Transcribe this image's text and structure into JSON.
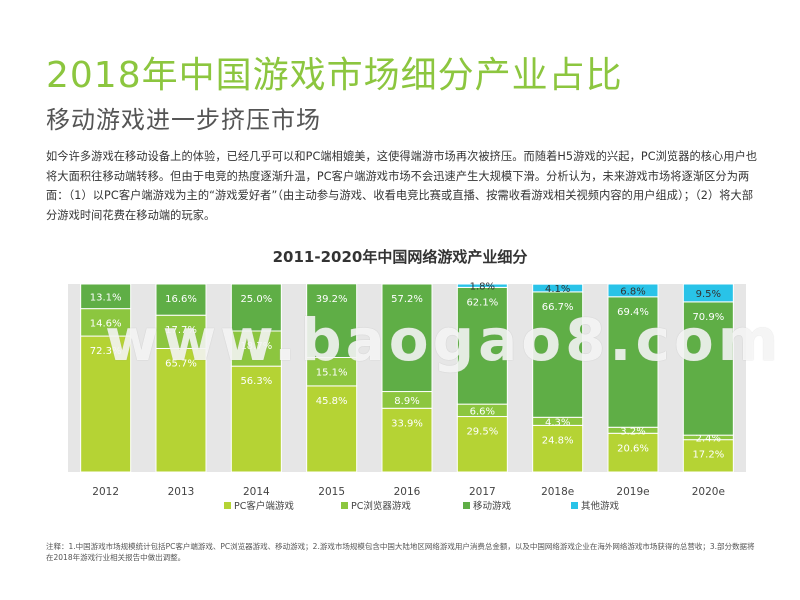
{
  "header": {
    "title": "2018年中国游戏市场细分产业占比",
    "subtitle": "移动游戏进一步挤压市场"
  },
  "intro": "如今许多游戏在移动设备上的体验，已经几乎可以和PC端相媲美，这使得端游市场再次被挤压。而随着H5游戏的兴起，PC浏览器的核心用户也将大面积往移动端转移。但由于电竞的热度逐渐升温，PC客户端游戏市场不会迅速产生大规模下滑。分析认为，未来游戏市场将逐渐区分为两面：（1）以PC客户端游戏为主的“游戏爱好者”（由主动参与游戏、收看电竞比赛或直播、按需收看游戏相关视频内容的用户组成）；（2）将大部分游戏时间花费在移动端的玩家。",
  "watermark": "www.baogao8.com",
  "footnote": "注释：1.中国游戏市场规模统计包括PC客户端游戏、PC浏览器游戏、移动游戏；2.游戏市场规模包含中国大陆地区网络游戏用户消费总金额，以及中国网络游戏企业在海外网络游戏市场获得的总营收；3.部分数据将在2018年游戏行业相关报告中做出调整。",
  "colors": {
    "pc_client": "#b5d334",
    "pc_browser": "#8cc63f",
    "mobile": "#5fae46",
    "other": "#29c3e8",
    "plot_bg": "#e6e6e6"
  },
  "chart_data": {
    "type": "bar",
    "stacked": true,
    "title": "2011-2020年中国网络游戏产业细分",
    "categories": [
      "2012",
      "2013",
      "2014",
      "2015",
      "2016",
      "2017",
      "2018e",
      "2019e",
      "2020e"
    ],
    "ylim": [
      0,
      100
    ],
    "unit": "%",
    "legend_position": "bottom",
    "series": [
      {
        "name": "PC客户端游戏",
        "color": "#b5d334",
        "values": [
          72.3,
          65.7,
          56.3,
          45.8,
          33.9,
          29.5,
          24.8,
          20.6,
          17.2
        ],
        "labels": [
          "72.3%",
          "65.7%",
          "56.3%",
          "45.8%",
          "33.9%",
          "29.5%",
          "24.8%",
          "20.6%",
          "17.2%"
        ]
      },
      {
        "name": "PC浏览器游戏",
        "color": "#8cc63f",
        "values": [
          14.6,
          17.7,
          18.7,
          15.1,
          8.9,
          6.6,
          4.3,
          3.2,
          2.4
        ],
        "labels": [
          "14.6%",
          "17.7%",
          "18.7%",
          "15.1%",
          "8.9%",
          "6.6%",
          "4.3%",
          "3.2%",
          "2.4%"
        ]
      },
      {
        "name": "移动游戏",
        "color": "#5fae46",
        "values": [
          13.1,
          16.6,
          25.0,
          39.2,
          57.2,
          62.1,
          66.7,
          69.4,
          70.9
        ],
        "labels": [
          "13.1%",
          "16.6%",
          "25.0%",
          "39.2%",
          "57.2%",
          "62.1%",
          "66.7%",
          "69.4%",
          "70.9%"
        ]
      },
      {
        "name": "其他游戏",
        "color": "#29c3e8",
        "values": [
          0,
          0,
          0,
          0,
          0,
          1.8,
          4.1,
          6.8,
          9.5
        ],
        "labels": [
          "",
          "",
          "",
          "",
          "",
          "1.8%",
          "4.1%",
          "6.8%",
          "9.5%"
        ]
      }
    ]
  }
}
